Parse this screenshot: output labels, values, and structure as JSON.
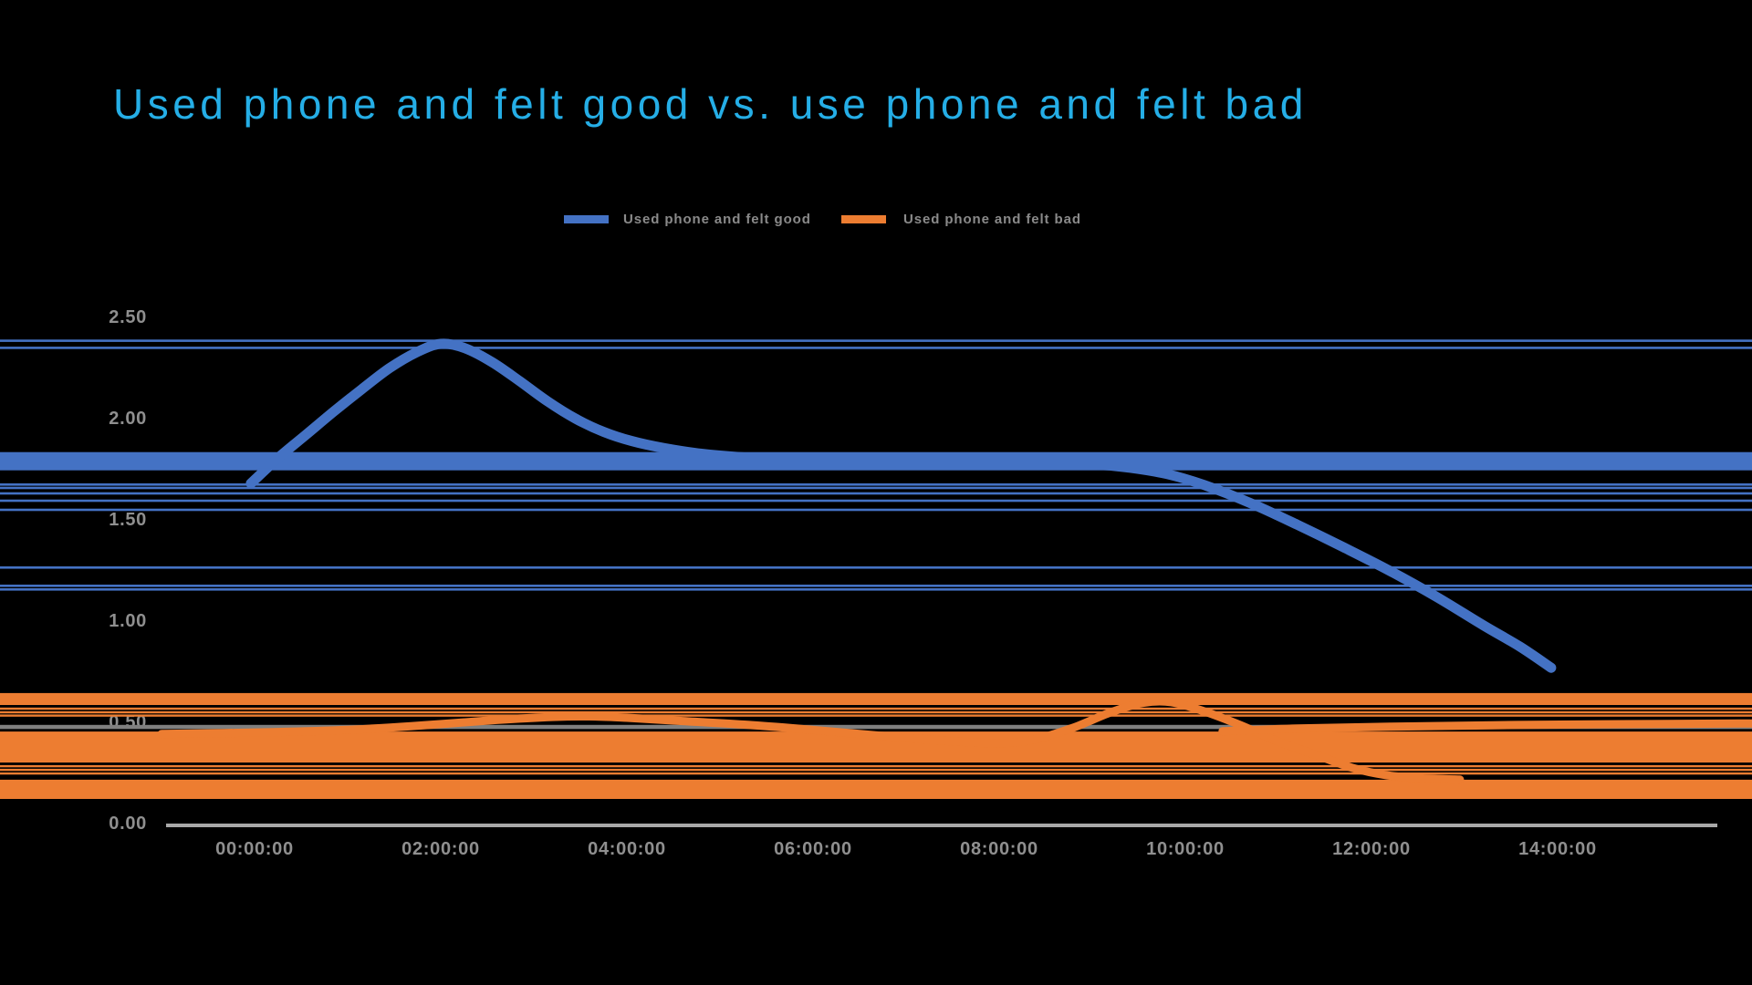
{
  "page": {
    "background": "#000000"
  },
  "title": {
    "text": "Used phone and felt good vs. use phone and felt bad",
    "color": "#25AEE6"
  },
  "legend": {
    "text_color": "#8A8A8A",
    "items": [
      {
        "label": "Used phone and felt good",
        "color": "#4472C4"
      },
      {
        "label": "Used phone and felt bad",
        "color": "#ED7D31"
      }
    ]
  },
  "chart_data": {
    "type": "line",
    "title": "Used phone and felt good vs. use phone and felt bad",
    "grid": false,
    "legend_position": "top-center",
    "x_axis": {
      "labels": [
        "00:00:00",
        "02:00:00",
        "04:00:00",
        "06:00:00",
        "08:00:00",
        "10:00:00",
        "12:00:00",
        "14:00:00"
      ],
      "hours": [
        0,
        2,
        4,
        6,
        8,
        10,
        12,
        14
      ],
      "text_color": "#8F8F8F",
      "axis_line_color": "#A8A8A8"
    },
    "y_axis": {
      "labels": [
        "0.00",
        "0.50",
        "1.00",
        "1.50",
        "2.00",
        "2.50"
      ],
      "values": [
        0,
        0.5,
        1,
        1.5,
        2,
        2.5
      ],
      "range": [
        0,
        2.5
      ],
      "text_color": "#8F8F8F"
    },
    "series": [
      {
        "name": "Used phone and felt good",
        "color": "#4472C4",
        "points": [
          [
            -0.04,
            1.675
          ],
          [
            0.25,
            1.8
          ],
          [
            0.55,
            1.915
          ],
          [
            0.85,
            2.03
          ],
          [
            1.15,
            2.14
          ],
          [
            1.45,
            2.245
          ],
          [
            1.75,
            2.325
          ],
          [
            2.0,
            2.365
          ],
          [
            2.25,
            2.345
          ],
          [
            2.55,
            2.275
          ],
          [
            2.85,
            2.18
          ],
          [
            3.15,
            2.08
          ],
          [
            3.45,
            1.995
          ],
          [
            3.75,
            1.93
          ],
          [
            4.05,
            1.885
          ],
          [
            4.4,
            1.85
          ],
          [
            4.8,
            1.822
          ],
          [
            5.2,
            1.806
          ],
          [
            5.7,
            1.795
          ],
          [
            6.3,
            1.79
          ],
          [
            7.2,
            1.786
          ],
          [
            8.2,
            1.78
          ],
          [
            9.0,
            1.77
          ],
          [
            9.4,
            1.753
          ],
          [
            9.8,
            1.722
          ],
          [
            10.2,
            1.668
          ],
          [
            10.7,
            1.578
          ],
          [
            11.2,
            1.472
          ],
          [
            11.7,
            1.36
          ],
          [
            12.2,
            1.243
          ],
          [
            12.7,
            1.115
          ],
          [
            13.2,
            0.975
          ],
          [
            13.6,
            0.868
          ],
          [
            13.93,
            0.765
          ]
        ]
      },
      {
        "name": "Used phone and felt bad",
        "color": "#ED7D31",
        "points": [
          [
            -1.0,
            0.438
          ],
          [
            0.2,
            0.447
          ],
          [
            1.0,
            0.458
          ],
          [
            1.8,
            0.48
          ],
          [
            2.6,
            0.507
          ],
          [
            3.2,
            0.522
          ],
          [
            3.6,
            0.525
          ],
          [
            4.0,
            0.518
          ],
          [
            4.6,
            0.502
          ],
          [
            5.3,
            0.483
          ],
          [
            6.0,
            0.458
          ],
          [
            6.7,
            0.43
          ],
          [
            7.4,
            0.405
          ],
          [
            8.0,
            0.393
          ],
          [
            8.4,
            0.413
          ],
          [
            8.8,
            0.47
          ],
          [
            9.2,
            0.545
          ],
          [
            9.55,
            0.592
          ],
          [
            9.85,
            0.595
          ],
          [
            10.2,
            0.55
          ],
          [
            10.6,
            0.48
          ],
          [
            11.0,
            0.4
          ],
          [
            11.4,
            0.335
          ],
          [
            11.8,
            0.27
          ],
          [
            12.15,
            0.235
          ],
          [
            12.5,
            0.22
          ],
          [
            12.95,
            0.213
          ]
        ]
      },
      {
        "name": "Used phone and felt bad (upper flat trace)",
        "color": "#ED7D31",
        "points": [
          [
            10.4,
            0.452
          ],
          [
            11.2,
            0.465
          ],
          [
            12.2,
            0.474
          ],
          [
            13.3,
            0.481
          ],
          [
            14.5,
            0.486
          ],
          [
            16.1,
            0.49
          ]
        ]
      }
    ],
    "background_traces": {
      "blue_band": {
        "top": 1.83,
        "bottom": 1.74,
        "color": "#4472C4"
      },
      "blue_lines": [
        2.38,
        2.345,
        1.67,
        1.653,
        1.626,
        1.59,
        1.545,
        1.26,
        1.17,
        1.152
      ],
      "orange_bands": [
        [
          0.64,
          0.581
        ],
        [
          0.45,
          0.297
        ],
        [
          0.212,
          0.117
        ]
      ],
      "orange_lines": [
        0.563,
        0.545,
        0.529,
        0.279,
        0.261,
        0.243
      ],
      "gray_line": {
        "value": 0.473,
        "color": "#7F7F7F"
      }
    }
  }
}
